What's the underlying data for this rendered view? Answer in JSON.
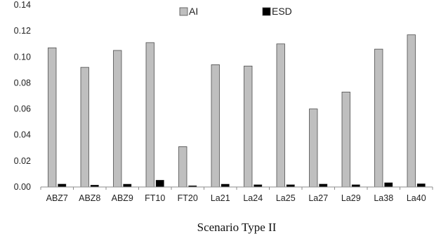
{
  "chart_data": {
    "type": "bar",
    "title": "",
    "xlabel": "Scenario Type II",
    "ylabel": "",
    "categories": [
      "ABZ7",
      "ABZ8",
      "ABZ9",
      "FT10",
      "FT20",
      "La21",
      "La24",
      "La25",
      "La27",
      "La29",
      "La38",
      "La40"
    ],
    "series": [
      {
        "name": "AI",
        "color": "#bfbfbf",
        "values": [
          0.107,
          0.092,
          0.105,
          0.111,
          0.031,
          0.094,
          0.093,
          0.11,
          0.06,
          0.073,
          0.106,
          0.117
        ]
      },
      {
        "name": "ESD",
        "color": "#000000",
        "values": [
          0.0023,
          0.0015,
          0.0022,
          0.0053,
          0.001,
          0.0022,
          0.0018,
          0.0018,
          0.0023,
          0.0018,
          0.0033,
          0.0025
        ]
      }
    ],
    "ylim": [
      0,
      0.14
    ],
    "yticks": [
      "0.00",
      "0.02",
      "0.04",
      "0.06",
      "0.08",
      "0.10",
      "0.12",
      "0.14"
    ],
    "grid": false,
    "legend_position": "top-center"
  }
}
